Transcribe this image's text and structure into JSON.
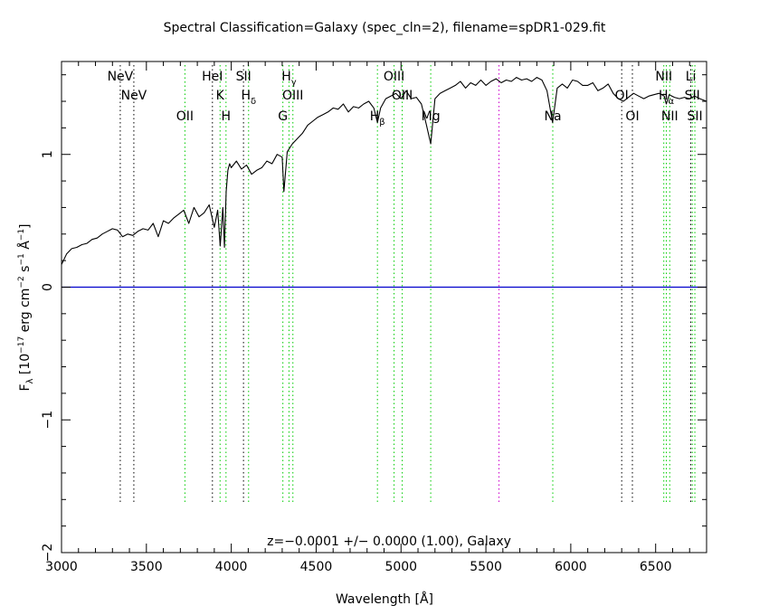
{
  "chart_data": {
    "type": "line",
    "title": "Spectral Classification=Galaxy (spec_cln=2), filename=spDR1-029.fit",
    "xlabel": "Wavelength [Å]",
    "ylabel": {
      "prefix": "F",
      "sub": "λ",
      "mid1": " [10",
      "exp1": "−17",
      "mid2": " erg cm",
      "exp2": "−2",
      "mid3": " s",
      "exp3": "−1",
      "mid4": " Å",
      "exp4": "−1",
      "end": "]"
    },
    "annotation": "z=−0.0001 +/− 0.0000 (1.00), Galaxy",
    "xlim": [
      3000,
      6800
    ],
    "ylim": [
      -2,
      1.7
    ],
    "x_ticks": [
      3000,
      3500,
      4000,
      4500,
      5000,
      5500,
      6000,
      6500
    ],
    "x_tick_labels": [
      "3000",
      "3500",
      "4000",
      "4500",
      "5000",
      "5500",
      "6000",
      "6500"
    ],
    "y_ticks": [
      -2,
      -1,
      0,
      1
    ],
    "y_tick_labels": [
      "−2",
      "−1",
      "0",
      "1"
    ],
    "zero_line": {
      "y": 0,
      "color": "#0000cc"
    },
    "colors": {
      "spectrum": "#000000",
      "emission": "#00cc00",
      "absorption": "#000000",
      "sky": "#cc00cc",
      "frame": "#000000"
    },
    "spectrum": {
      "name": "Flux",
      "x": [
        3000,
        3030,
        3060,
        3090,
        3120,
        3150,
        3180,
        3210,
        3240,
        3270,
        3300,
        3330,
        3360,
        3390,
        3420,
        3450,
        3480,
        3510,
        3540,
        3570,
        3600,
        3630,
        3660,
        3690,
        3720,
        3750,
        3780,
        3810,
        3840,
        3870,
        3900,
        3920,
        3935,
        3950,
        3960,
        3970,
        3980,
        3990,
        4000,
        4030,
        4060,
        4090,
        4120,
        4150,
        4180,
        4210,
        4240,
        4270,
        4300,
        4310,
        4330,
        4360,
        4390,
        4420,
        4450,
        4480,
        4510,
        4540,
        4570,
        4600,
        4630,
        4660,
        4690,
        4720,
        4750,
        4780,
        4810,
        4840,
        4861,
        4880,
        4910,
        4940,
        4970,
        5000,
        5030,
        5060,
        5090,
        5120,
        5150,
        5175,
        5200,
        5230,
        5260,
        5290,
        5320,
        5350,
        5380,
        5410,
        5440,
        5470,
        5500,
        5530,
        5560,
        5590,
        5620,
        5650,
        5680,
        5710,
        5740,
        5770,
        5800,
        5830,
        5860,
        5893,
        5920,
        5950,
        5980,
        6010,
        6040,
        6070,
        6100,
        6130,
        6160,
        6190,
        6220,
        6250,
        6280,
        6310,
        6340,
        6370,
        6400,
        6430,
        6460,
        6490,
        6520,
        6550,
        6563,
        6580,
        6610,
        6640,
        6670,
        6700,
        6730,
        6760,
        6800
      ],
      "values": [
        0.17,
        0.25,
        0.29,
        0.3,
        0.32,
        0.33,
        0.36,
        0.37,
        0.4,
        0.42,
        0.44,
        0.43,
        0.38,
        0.4,
        0.39,
        0.42,
        0.44,
        0.43,
        0.48,
        0.38,
        0.5,
        0.48,
        0.52,
        0.55,
        0.58,
        0.48,
        0.6,
        0.53,
        0.56,
        0.62,
        0.45,
        0.58,
        0.31,
        0.6,
        0.3,
        0.72,
        0.88,
        0.93,
        0.9,
        0.95,
        0.89,
        0.92,
        0.85,
        0.88,
        0.9,
        0.95,
        0.93,
        1.0,
        0.98,
        0.72,
        1.02,
        1.08,
        1.12,
        1.16,
        1.22,
        1.25,
        1.28,
        1.3,
        1.32,
        1.35,
        1.34,
        1.38,
        1.32,
        1.36,
        1.35,
        1.38,
        1.4,
        1.35,
        1.24,
        1.35,
        1.42,
        1.44,
        1.46,
        1.42,
        1.48,
        1.42,
        1.43,
        1.38,
        1.22,
        1.08,
        1.42,
        1.46,
        1.48,
        1.5,
        1.52,
        1.55,
        1.5,
        1.54,
        1.52,
        1.56,
        1.52,
        1.55,
        1.57,
        1.54,
        1.56,
        1.55,
        1.58,
        1.56,
        1.57,
        1.55,
        1.58,
        1.56,
        1.48,
        1.24,
        1.5,
        1.53,
        1.5,
        1.56,
        1.55,
        1.52,
        1.52,
        1.54,
        1.48,
        1.5,
        1.53,
        1.46,
        1.42,
        1.4,
        1.43,
        1.46,
        1.44,
        1.42,
        1.44,
        1.45,
        1.46,
        1.44,
        1.38,
        1.45,
        1.43,
        1.42,
        1.43,
        1.42,
        1.44,
        1.42,
        1.4
      ]
    },
    "lines": [
      {
        "name": "NeV",
        "x": 3346,
        "kind": "absorption",
        "label": "NeV",
        "row": 0
      },
      {
        "name": "NeV",
        "x": 3426,
        "kind": "absorption",
        "label": "NeV",
        "row": 1
      },
      {
        "name": "OII",
        "x": 3727,
        "kind": "emission",
        "label": "OII",
        "row": 2
      },
      {
        "name": "HeI",
        "x": 3889,
        "kind": "absorption",
        "label": "HeI",
        "row": 0
      },
      {
        "name": "K",
        "x": 3934,
        "kind": "emission",
        "label": "K",
        "row": 1
      },
      {
        "name": "H",
        "x": 3969,
        "kind": "emission",
        "label": "H",
        "row": 2
      },
      {
        "name": "SII",
        "x": 4072,
        "kind": "absorption",
        "label": "SII",
        "row": 0
      },
      {
        "name": "Hdelta",
        "x": 4102,
        "kind": "emission",
        "label": "H",
        "sub": "δ",
        "row": 1
      },
      {
        "name": "G",
        "x": 4304,
        "kind": "emission",
        "label": "G",
        "row": 2
      },
      {
        "name": "Hgamma",
        "x": 4340,
        "kind": "emission",
        "label": "H",
        "sub": "γ",
        "row": 0
      },
      {
        "name": "OIII",
        "x": 4363,
        "kind": "emission",
        "label": "OIII",
        "row": 1
      },
      {
        "name": "Hbeta",
        "x": 4861,
        "kind": "emission",
        "label": "H",
        "sub": "β",
        "row": 2
      },
      {
        "name": "OIII",
        "x": 4959,
        "kind": "emission",
        "label": "OIII",
        "row": 0
      },
      {
        "name": "OIII",
        "x": 5007,
        "kind": "emission",
        "label": "OIII",
        "row": 1
      },
      {
        "name": "Mg",
        "x": 5175,
        "kind": "emission",
        "label": "Mg",
        "row": 2
      },
      {
        "name": "sky",
        "x": 5577,
        "kind": "sky",
        "label": "",
        "row": 0
      },
      {
        "name": "Na",
        "x": 5894,
        "kind": "emission",
        "label": "Na",
        "row": 2
      },
      {
        "name": "OI",
        "x": 6300,
        "kind": "absorption",
        "label": "OI",
        "row": 1
      },
      {
        "name": "OI",
        "x": 6363,
        "kind": "absorption",
        "label": "OI",
        "row": 2
      },
      {
        "name": "NII",
        "x": 6548,
        "kind": "emission",
        "label": "NII",
        "row": 0
      },
      {
        "name": "Halpha",
        "x": 6563,
        "kind": "emission",
        "label": "H",
        "sub": "α",
        "row": 1
      },
      {
        "name": "NII",
        "x": 6583,
        "kind": "emission",
        "label": "NII",
        "row": 2
      },
      {
        "name": "Li",
        "x": 6707,
        "kind": "absorption",
        "label": "Li",
        "row": 0
      },
      {
        "name": "SII",
        "x": 6716,
        "kind": "emission",
        "label": "SII",
        "row": 1
      },
      {
        "name": "SII",
        "x": 6731,
        "kind": "emission",
        "label": "SII",
        "row": 2
      }
    ]
  }
}
